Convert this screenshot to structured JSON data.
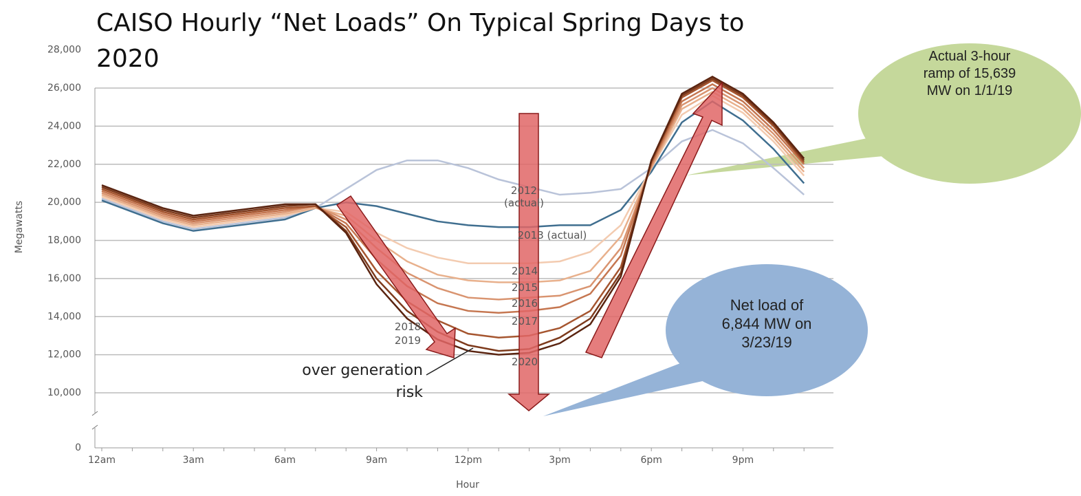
{
  "chart_data": {
    "type": "line",
    "title": "CAISO Hourly “Net Loads” On Typical Spring Days to 2020",
    "x_label": "Hour",
    "y_label": "Megawatts",
    "categories": [
      "12am",
      null,
      null,
      "3am",
      null,
      null,
      "6am",
      null,
      null,
      "9am",
      null,
      null,
      "12pm",
      null,
      null,
      "3pm",
      null,
      null,
      "6pm",
      null,
      null,
      "9pm",
      null,
      null
    ],
    "ylim": [
      0,
      28000
    ],
    "yticks": [
      0,
      {
        "value": 10000,
        "label": "10,000"
      },
      {
        "value": 12000,
        "label": "12,000"
      },
      {
        "value": 14000,
        "label": "14,000"
      },
      {
        "value": 16000,
        "label": "16,000"
      },
      {
        "value": 18000,
        "label": "18,000"
      },
      {
        "value": 20000,
        "label": "20,000"
      },
      {
        "value": 22000,
        "label": "22,000"
      },
      {
        "value": 24000,
        "label": "24,000"
      },
      {
        "value": 26000,
        "label": "26,000"
      },
      {
        "value": 28000,
        "label": "28,000"
      }
    ],
    "axis_break": true,
    "grid": true,
    "series": [
      {
        "name": "2012 (actual)",
        "color": "#b9c3d9",
        "values": [
          20200,
          19600,
          19000,
          18600,
          18800,
          19000,
          19200,
          19700,
          20700,
          21700,
          22200,
          22200,
          21800,
          21200,
          20800,
          20400,
          20500,
          20700,
          21800,
          23200,
          23800,
          23100,
          21800,
          20400
        ]
      },
      {
        "name": "2013 (actual)",
        "color": "#3f6e8f",
        "values": [
          20100,
          19500,
          18900,
          18500,
          18700,
          18900,
          19100,
          19700,
          20000,
          19800,
          19400,
          19000,
          18800,
          18700,
          18700,
          18800,
          18800,
          19600,
          21600,
          24200,
          25300,
          24300,
          22800,
          21000
        ]
      },
      {
        "name": "2014",
        "color": "#f3cbb0",
        "values": [
          20300,
          19700,
          19100,
          18700,
          18900,
          19100,
          19300,
          19700,
          19500,
          18400,
          17600,
          17100,
          16800,
          16800,
          16800,
          16900,
          17400,
          18800,
          21800,
          24600,
          25600,
          24700,
          23200,
          21400
        ]
      },
      {
        "name": "2015",
        "color": "#e8b08c",
        "values": [
          20400,
          19800,
          19200,
          18800,
          19000,
          19200,
          19400,
          19700,
          19300,
          18000,
          16900,
          16200,
          15900,
          15800,
          15800,
          15900,
          16400,
          18200,
          21800,
          24900,
          25800,
          24900,
          23400,
          21600
        ]
      },
      {
        "name": "2016",
        "color": "#d99470",
        "values": [
          20500,
          19900,
          19300,
          18900,
          19100,
          19300,
          19500,
          19800,
          19100,
          17600,
          16300,
          15500,
          15000,
          14900,
          15000,
          15100,
          15600,
          17600,
          21900,
          25100,
          26000,
          25100,
          23600,
          21800
        ]
      },
      {
        "name": "2017",
        "color": "#c57650",
        "values": [
          20600,
          20000,
          19400,
          19000,
          19200,
          19400,
          19600,
          19800,
          18900,
          17000,
          15600,
          14700,
          14300,
          14200,
          14300,
          14500,
          15200,
          17200,
          22000,
          25300,
          26200,
          25300,
          23800,
          22000
        ]
      },
      {
        "name": "2018",
        "color": "#a5552f",
        "values": [
          20700,
          20100,
          19500,
          19100,
          19300,
          19500,
          19700,
          19800,
          18700,
          16400,
          14800,
          13800,
          13100,
          12900,
          13000,
          13400,
          14300,
          16600,
          22100,
          25500,
          26400,
          25500,
          24000,
          22100
        ]
      },
      {
        "name": "2019",
        "color": "#7d3a1c",
        "values": [
          20800,
          20200,
          19600,
          19200,
          19400,
          19600,
          19800,
          19900,
          18500,
          16000,
          14300,
          13200,
          12500,
          12200,
          12300,
          12900,
          13900,
          16300,
          22200,
          25600,
          26500,
          25600,
          24100,
          22200
        ]
      },
      {
        "name": "2020",
        "color": "#5a2410",
        "values": [
          20900,
          20300,
          19700,
          19300,
          19500,
          19700,
          19900,
          19900,
          18400,
          15700,
          13900,
          12800,
          12200,
          12000,
          12100,
          12600,
          13600,
          16100,
          22200,
          25700,
          26600,
          25700,
          24200,
          22300
        ]
      }
    ],
    "annotations": [
      "over generation risk",
      "Actual 3-hour ramp of 15,639 MW on 1/1/19",
      "Net load of 6,844 MW on 3/23/19"
    ]
  }
}
